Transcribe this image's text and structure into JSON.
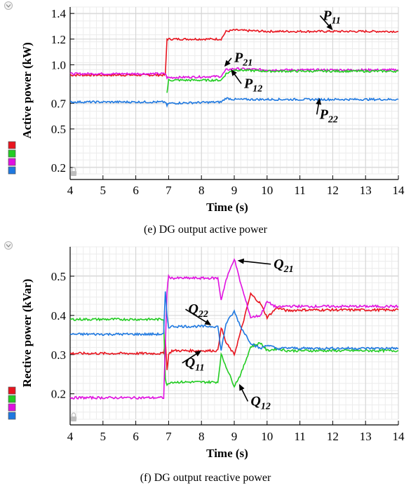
{
  "chart_data": [
    {
      "type": "line",
      "caption": "(e) DG output active power",
      "xlabel": "Time (s)",
      "ylabel": "Active power (kW)",
      "xlim": [
        4,
        14
      ],
      "ylim": [
        0.15,
        1.45
      ],
      "xticks": [
        4,
        5,
        6,
        7,
        8,
        9,
        10,
        11,
        12,
        13,
        14
      ],
      "yticks": [
        0.2,
        0.5,
        0.7,
        1.0,
        1.2,
        1.4
      ],
      "ytick_labels": [
        "0.2",
        "0.5",
        "0.7",
        "1.0",
        "1.2",
        "1.4"
      ],
      "grid": true,
      "series_colors": [
        "#e8141e",
        "#22cc22",
        "#e010e0",
        "#1e78e0"
      ],
      "series": [
        {
          "name": "P11",
          "color": "#e8141e",
          "x": [
            4,
            6.9,
            6.95,
            7.0,
            8.6,
            8.75,
            9.0,
            10.0,
            14
          ],
          "y": [
            0.92,
            0.92,
            1.2,
            1.2,
            1.2,
            1.26,
            1.27,
            1.26,
            1.26
          ]
        },
        {
          "name": "P21",
          "color": "#e010e0",
          "x": [
            4,
            6.9,
            6.95,
            7.0,
            8.6,
            8.75,
            9.0,
            10.0,
            14
          ],
          "y": [
            0.93,
            0.93,
            0.9,
            0.9,
            0.91,
            0.96,
            0.97,
            0.96,
            0.96
          ]
        },
        {
          "name": "P12",
          "color": "#22cc22",
          "x": [
            6.95,
            7.0,
            8.6,
            8.75,
            9.0,
            10.0,
            14
          ],
          "y": [
            0.78,
            0.88,
            0.88,
            0.93,
            0.96,
            0.95,
            0.95
          ]
        },
        {
          "name": "P22",
          "color": "#1e78e0",
          "x": [
            4,
            6.9,
            6.95,
            7.0,
            8.6,
            8.75,
            9.0,
            10.0,
            14
          ],
          "y": [
            0.71,
            0.71,
            0.68,
            0.7,
            0.71,
            0.74,
            0.73,
            0.73,
            0.73
          ]
        }
      ],
      "annotations": [
        {
          "main": "P",
          "sub": "11",
          "x": 11.7,
          "y": 1.35
        },
        {
          "main": "P",
          "sub": "21",
          "x": 9.0,
          "y": 1.02
        },
        {
          "main": "P",
          "sub": "12",
          "x": 9.3,
          "y": 0.82
        },
        {
          "main": "P",
          "sub": "22",
          "x": 11.6,
          "y": 0.58
        }
      ]
    },
    {
      "type": "line",
      "caption": "(f) DG output reactive power",
      "xlabel": "Time (s)",
      "ylabel": "Rective power (kVar)",
      "xlim": [
        4,
        14
      ],
      "ylim": [
        0.135,
        0.575
      ],
      "xticks": [
        4,
        5,
        6,
        7,
        8,
        9,
        10,
        11,
        12,
        13,
        14
      ],
      "yticks": [
        0.2,
        0.3,
        0.4,
        0.5
      ],
      "ytick_labels": [
        "0.2",
        "0.3",
        "0.4",
        "0.5"
      ],
      "grid": true,
      "series_colors": [
        "#e8141e",
        "#22cc22",
        "#e010e0",
        "#1e78e0"
      ],
      "series": [
        {
          "name": "Q11",
          "color": "#e8141e",
          "x": [
            4,
            6.85,
            6.9,
            6.95,
            7.0,
            7.1,
            8.5,
            8.6,
            8.75,
            9.0,
            9.2,
            9.5,
            9.8,
            10.0,
            10.3,
            10.6,
            11.0,
            14
          ],
          "y": [
            0.303,
            0.303,
            0.34,
            0.26,
            0.3,
            0.31,
            0.31,
            0.37,
            0.33,
            0.3,
            0.36,
            0.455,
            0.43,
            0.395,
            0.42,
            0.412,
            0.414,
            0.414
          ]
        },
        {
          "name": "Q12",
          "color": "#22cc22",
          "x": [
            4,
            6.85,
            6.9,
            6.95,
            7.0,
            7.1,
            8.5,
            8.6,
            8.75,
            9.0,
            9.2,
            9.5,
            9.8,
            10.0,
            10.3,
            10.6,
            11.0,
            14
          ],
          "y": [
            0.39,
            0.39,
            0.24,
            0.22,
            0.228,
            0.23,
            0.23,
            0.3,
            0.27,
            0.22,
            0.25,
            0.32,
            0.33,
            0.31,
            0.315,
            0.31,
            0.31,
            0.31
          ]
        },
        {
          "name": "Q21",
          "color": "#e010e0",
          "x": [
            4,
            6.85,
            6.9,
            6.95,
            7.0,
            7.1,
            8.5,
            8.6,
            8.75,
            9.0,
            9.2,
            9.5,
            9.8,
            10.0,
            10.3,
            10.6,
            11.0,
            14
          ],
          "y": [
            0.19,
            0.19,
            0.32,
            0.46,
            0.5,
            0.495,
            0.495,
            0.44,
            0.49,
            0.545,
            0.48,
            0.395,
            0.4,
            0.435,
            0.42,
            0.424,
            0.423,
            0.423
          ]
        },
        {
          "name": "Q22",
          "color": "#1e78e0",
          "x": [
            4,
            6.85,
            6.9,
            6.95,
            7.0,
            7.1,
            8.5,
            8.6,
            8.75,
            9.0,
            9.2,
            9.5,
            9.8,
            10.0,
            10.3,
            10.6,
            11.0,
            14
          ],
          "y": [
            0.352,
            0.352,
            0.46,
            0.4,
            0.37,
            0.372,
            0.372,
            0.31,
            0.38,
            0.41,
            0.37,
            0.33,
            0.315,
            0.325,
            0.315,
            0.317,
            0.316,
            0.316
          ]
        }
      ],
      "annotations": [
        {
          "main": "Q",
          "sub": "21",
          "x": 10.2,
          "y": 0.52
        },
        {
          "main": "Q",
          "sub": "22",
          "x": 7.6,
          "y": 0.405
        },
        {
          "main": "Q",
          "sub": "11",
          "x": 7.5,
          "y": 0.268
        },
        {
          "main": "Q",
          "sub": "12",
          "x": 9.5,
          "y": 0.17
        }
      ]
    }
  ]
}
